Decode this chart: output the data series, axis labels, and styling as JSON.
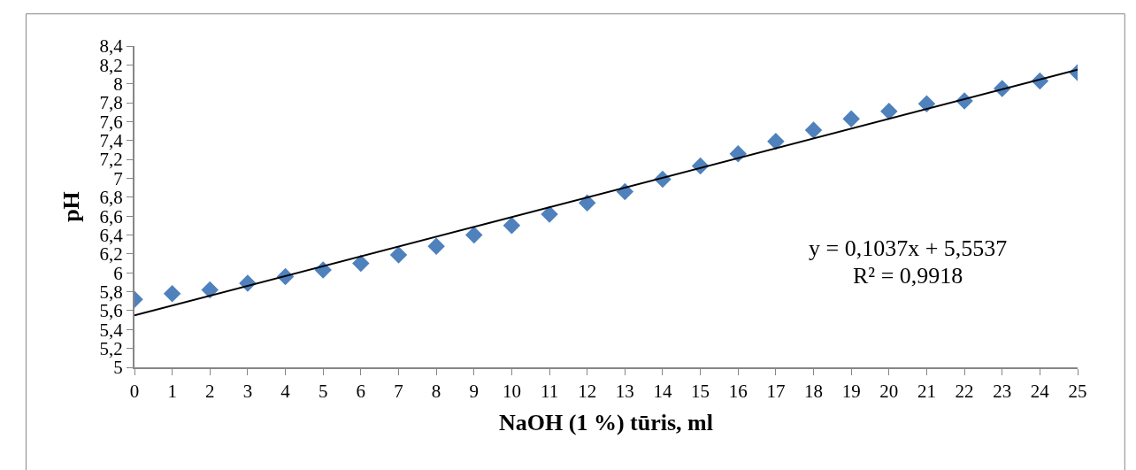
{
  "chart_data": {
    "type": "scatter",
    "xlabel": "NaOH (1 %) tūris, ml",
    "ylabel": "pH",
    "x": [
      0,
      1,
      2,
      3,
      4,
      5,
      6,
      7,
      8,
      9,
      10,
      11,
      12,
      13,
      14,
      15,
      16,
      17,
      18,
      19,
      20,
      21,
      22,
      23,
      24,
      25
    ],
    "series": [
      {
        "color": "#4f81bd",
        "marker": "diamond",
        "values": [
          5.72,
          5.78,
          5.82,
          5.89,
          5.96,
          6.03,
          6.1,
          6.19,
          6.28,
          6.4,
          6.5,
          6.62,
          6.74,
          6.86,
          6.99,
          7.13,
          7.26,
          7.39,
          7.51,
          7.63,
          7.71,
          7.79,
          7.82,
          7.95,
          8.03,
          8.12
        ]
      },
      {
        "type": "line",
        "color": "#000000",
        "line_style": "solid",
        "x": [
          0,
          25
        ],
        "values": [
          5.55,
          8.15
        ]
      }
    ],
    "annotations": [
      "y = 0,1037x + 5,5537",
      "R² = 0,9918"
    ],
    "xlim": [
      0,
      25
    ],
    "xticks": [
      0,
      1,
      2,
      3,
      4,
      5,
      6,
      7,
      8,
      9,
      10,
      11,
      12,
      13,
      14,
      15,
      16,
      17,
      18,
      19,
      20,
      21,
      22,
      23,
      24,
      25
    ],
    "ylim": [
      5,
      8.4
    ],
    "yticks": [
      5,
      {
        "value": 5.2,
        "label": "5,2"
      },
      {
        "value": 5.4,
        "label": "5,4"
      },
      {
        "value": 5.6,
        "label": "5,6"
      },
      {
        "value": 5.8,
        "label": "5,8"
      },
      6,
      {
        "value": 6.2,
        "label": "6,2"
      },
      {
        "value": 6.4,
        "label": "6,4"
      },
      {
        "value": 6.6,
        "label": "6,6"
      },
      {
        "value": 6.8,
        "label": "6,8"
      },
      7,
      {
        "value": 7.2,
        "label": "7,2"
      },
      {
        "value": 7.4,
        "label": "7,4"
      },
      {
        "value": 7.6,
        "label": "7,6"
      },
      {
        "value": 7.8,
        "label": "7,8"
      },
      8,
      {
        "value": 8.2,
        "label": "8,2"
      },
      {
        "value": 8.4,
        "label": "8,4"
      }
    ],
    "tick_labels": true
  }
}
